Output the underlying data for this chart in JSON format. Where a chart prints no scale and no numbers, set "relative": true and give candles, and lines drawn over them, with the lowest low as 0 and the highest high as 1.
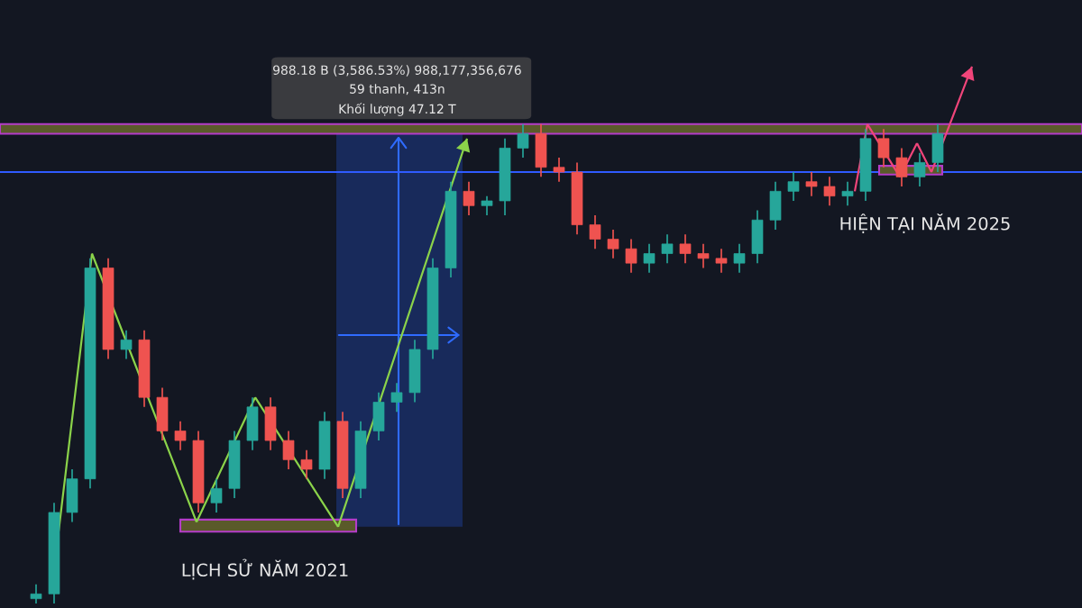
{
  "chart_data": {
    "type": "candlestick",
    "relative": true,
    "categories": [
      null,
      null,
      null,
      null,
      null,
      null,
      null,
      null,
      null,
      null,
      null,
      null,
      null,
      null,
      null,
      null,
      null,
      null,
      null,
      null,
      null,
      null,
      null,
      null,
      null,
      null,
      null,
      null,
      null,
      null,
      null,
      null,
      null,
      null,
      null,
      null,
      null,
      null,
      null,
      null,
      null,
      null,
      null,
      null,
      null,
      null,
      null,
      null,
      null,
      null,
      null
    ],
    "ohlc": [
      [
        0.01,
        0.04,
        0.0,
        0.02
      ],
      [
        0.02,
        0.21,
        0.0,
        0.19
      ],
      [
        0.19,
        0.28,
        0.17,
        0.26
      ],
      [
        0.26,
        0.72,
        0.24,
        0.7
      ],
      [
        0.7,
        0.72,
        0.51,
        0.53
      ],
      [
        0.53,
        0.57,
        0.51,
        0.55
      ],
      [
        0.55,
        0.57,
        0.41,
        0.43
      ],
      [
        0.43,
        0.45,
        0.34,
        0.36
      ],
      [
        0.36,
        0.38,
        0.32,
        0.34
      ],
      [
        0.34,
        0.36,
        0.19,
        0.21
      ],
      [
        0.21,
        0.26,
        0.19,
        0.24
      ],
      [
        0.24,
        0.36,
        0.22,
        0.34
      ],
      [
        0.34,
        0.43,
        0.32,
        0.41
      ],
      [
        0.41,
        0.43,
        0.32,
        0.34
      ],
      [
        0.34,
        0.36,
        0.28,
        0.3
      ],
      [
        0.3,
        0.32,
        0.26,
        0.28
      ],
      [
        0.28,
        0.4,
        0.26,
        0.38
      ],
      [
        0.38,
        0.4,
        0.22,
        0.24
      ],
      [
        0.24,
        0.38,
        0.22,
        0.36
      ],
      [
        0.36,
        0.44,
        0.34,
        0.42
      ],
      [
        0.42,
        0.46,
        0.4,
        0.44
      ],
      [
        0.44,
        0.55,
        0.42,
        0.53
      ],
      [
        0.53,
        0.72,
        0.51,
        0.7
      ],
      [
        0.7,
        0.88,
        0.68,
        0.86
      ],
      [
        0.86,
        0.88,
        0.81,
        0.83
      ],
      [
        0.83,
        0.85,
        0.81,
        0.84
      ],
      [
        0.84,
        0.97,
        0.81,
        0.95
      ],
      [
        0.95,
        1.0,
        0.93,
        0.98
      ],
      [
        0.98,
        1.0,
        0.89,
        0.91
      ],
      [
        0.91,
        0.93,
        0.88,
        0.9
      ],
      [
        0.9,
        0.92,
        0.77,
        0.79
      ],
      [
        0.79,
        0.81,
        0.74,
        0.76
      ],
      [
        0.76,
        0.78,
        0.72,
        0.74
      ],
      [
        0.74,
        0.76,
        0.69,
        0.71
      ],
      [
        0.71,
        0.75,
        0.69,
        0.73
      ],
      [
        0.73,
        0.77,
        0.71,
        0.75
      ],
      [
        0.75,
        0.77,
        0.71,
        0.73
      ],
      [
        0.73,
        0.75,
        0.7,
        0.72
      ],
      [
        0.72,
        0.74,
        0.69,
        0.71
      ],
      [
        0.71,
        0.75,
        0.69,
        0.73
      ],
      [
        0.73,
        0.82,
        0.71,
        0.8
      ],
      [
        0.8,
        0.88,
        0.78,
        0.86
      ],
      [
        0.86,
        0.9,
        0.84,
        0.88
      ],
      [
        0.88,
        0.9,
        0.85,
        0.87
      ],
      [
        0.87,
        0.89,
        0.83,
        0.85
      ],
      [
        0.85,
        0.88,
        0.83,
        0.86
      ],
      [
        0.86,
        0.99,
        0.84,
        0.97
      ],
      [
        0.97,
        0.99,
        0.91,
        0.93
      ],
      [
        0.93,
        0.95,
        0.87,
        0.89
      ],
      [
        0.89,
        0.94,
        0.87,
        0.92
      ],
      [
        0.92,
        1.0,
        0.9,
        0.98
      ]
    ],
    "ref_lines": [
      {
        "axis": "y",
        "value": 0.9,
        "color": "#2f5bff"
      }
    ],
    "bands": [
      {
        "axis": "y",
        "from": 0.98,
        "to": 1.0,
        "color": "#5a5a2a"
      }
    ],
    "annotations": [
      "988.18 B (3,586.53%) 988,177,356,676",
      "59 thanh, 413n",
      "Khối lượng 47.12 T",
      "LỊCH SỬ NĂM 2021",
      "HIỆN TẠI NĂM 2025"
    ]
  }
}
